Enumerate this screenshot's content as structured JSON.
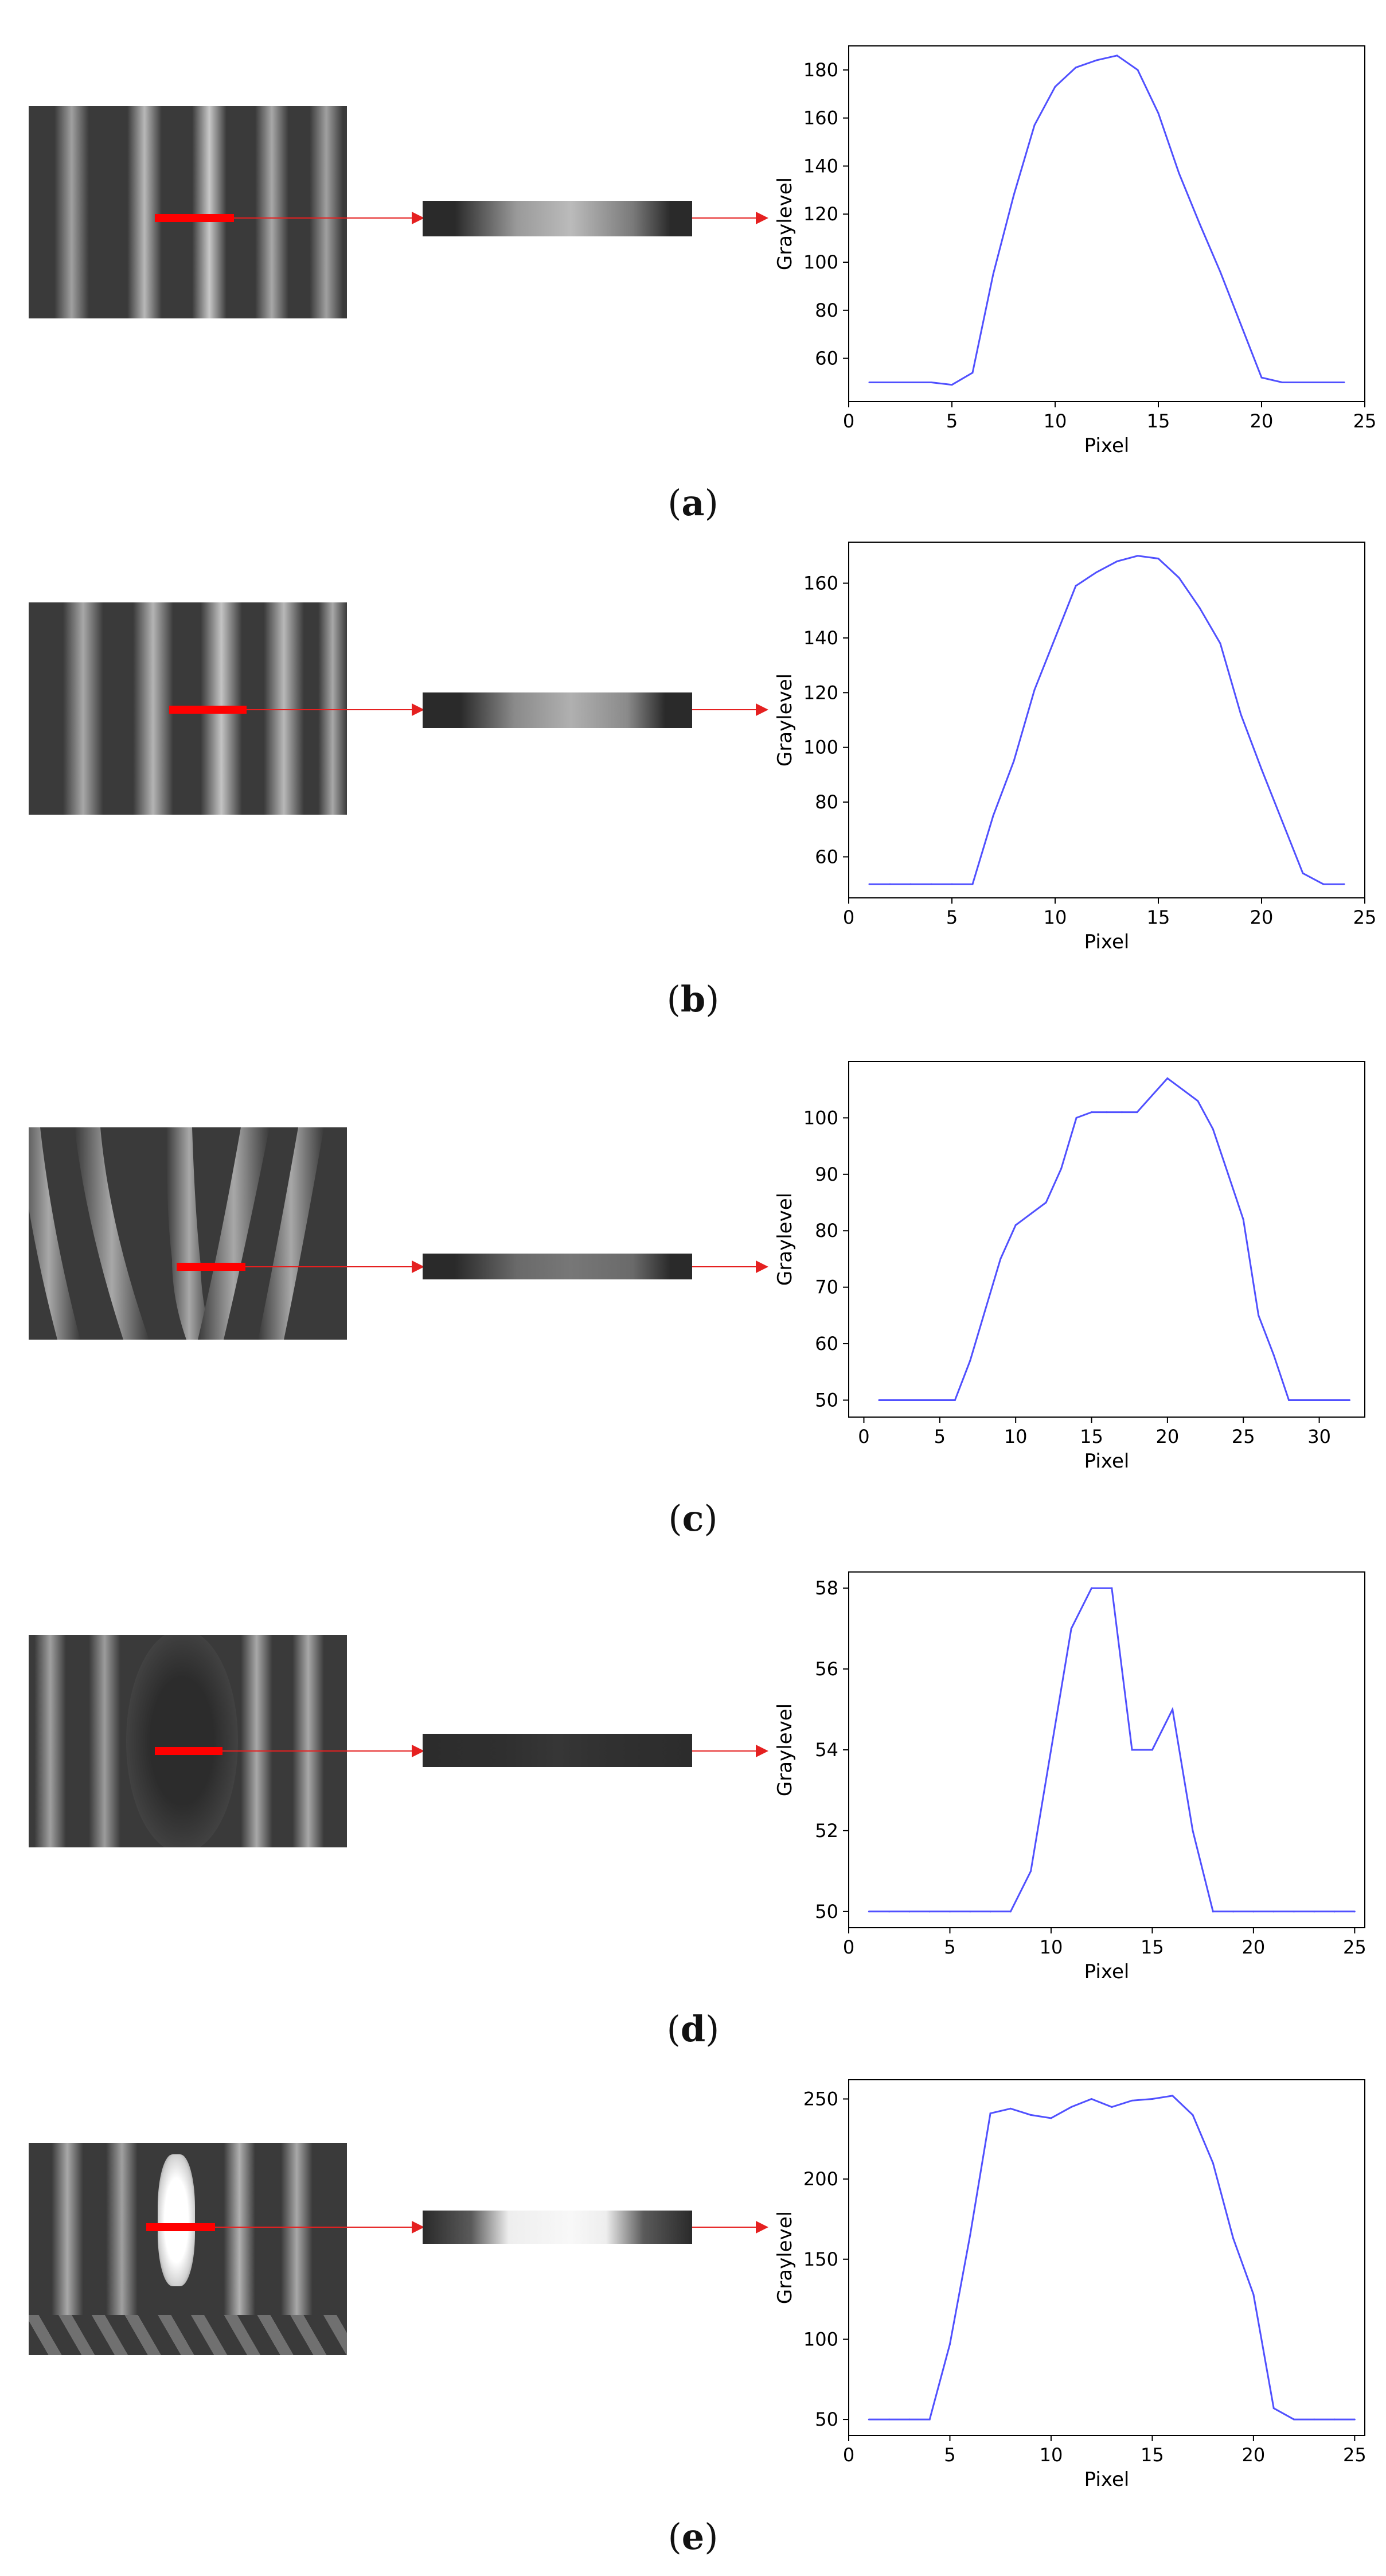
{
  "panels": [
    {
      "label": "a",
      "pattern": "straight",
      "strip_gradient": [
        "#2a2a2a",
        "#2a2a2a",
        "#9a9a9a",
        "#bbbbbb",
        "#7a7a7a",
        "#2a2a2a",
        "#2a2a2a"
      ],
      "marker_brightness": "bright"
    },
    {
      "label": "b",
      "pattern": "straight-wide",
      "strip_gradient": [
        "#2a2a2a",
        "#2a2a2a",
        "#8a8a8a",
        "#b0b0b0",
        "#8a8a8a",
        "#2a2a2a",
        "#2a2a2a"
      ],
      "marker_brightness": "bright"
    },
    {
      "label": "c",
      "pattern": "distorted",
      "strip_gradient": [
        "#2a2a2a",
        "#2a2a2a",
        "#6a6a6a",
        "#777777",
        "#6a6a6a",
        "#2a2a2a",
        "#2a2a2a"
      ],
      "marker_brightness": "dim"
    },
    {
      "label": "d",
      "pattern": "dark-defect",
      "strip_gradient": [
        "#2c2c2c",
        "#2f2f2f",
        "#343434",
        "#363636",
        "#303030",
        "#2c2c2c",
        "#2c2c2c"
      ],
      "marker_brightness": "dark"
    },
    {
      "label": "e",
      "pattern": "bright-defect",
      "strip_gradient": [
        "#2a2a2a",
        "#5a5a5a",
        "#eeeeee",
        "#f8f8f8",
        "#eeeeee",
        "#5a5a5a",
        "#2a2a2a"
      ],
      "marker_brightness": "saturated"
    }
  ],
  "chart_data": [
    {
      "type": "line",
      "xlabel": "Pixel",
      "ylabel": "Graylevel",
      "xlim": [
        0,
        25
      ],
      "ylim": [
        42,
        190
      ],
      "xticks": [
        0,
        5,
        10,
        15,
        20,
        25
      ],
      "yticks": [
        60,
        80,
        100,
        120,
        140,
        160,
        180
      ],
      "color": "#5050ff",
      "x": [
        1,
        2,
        3,
        4,
        5,
        6,
        7,
        8,
        9,
        10,
        11,
        12,
        13,
        14,
        15,
        16,
        17,
        18,
        19,
        20,
        21,
        22,
        23,
        24
      ],
      "y": [
        50,
        50,
        50,
        50,
        49,
        54,
        95,
        128,
        157,
        173,
        181,
        184,
        186,
        180,
        162,
        137,
        116,
        96,
        74,
        52,
        50,
        50,
        50,
        50
      ]
    },
    {
      "type": "line",
      "xlabel": "Pixel",
      "ylabel": "Graylevel",
      "xlim": [
        0,
        25
      ],
      "ylim": [
        45,
        175
      ],
      "xticks": [
        0,
        5,
        10,
        15,
        20,
        25
      ],
      "yticks": [
        60,
        80,
        100,
        120,
        140,
        160
      ],
      "color": "#5050ff",
      "x": [
        1,
        2,
        3,
        4,
        5,
        6,
        7,
        8,
        9,
        10,
        11,
        12,
        13,
        14,
        15,
        16,
        17,
        18,
        19,
        20,
        21,
        22,
        23,
        24
      ],
      "y": [
        50,
        50,
        50,
        50,
        50,
        50,
        75,
        95,
        121,
        140,
        159,
        164,
        168,
        170,
        169,
        162,
        151,
        138,
        112,
        92,
        73,
        54,
        50,
        50
      ]
    },
    {
      "type": "line",
      "xlabel": "Pixel",
      "ylabel": "Graylevel",
      "xlim": [
        -1,
        33
      ],
      "ylim": [
        47,
        110
      ],
      "xticks": [
        0,
        5,
        10,
        15,
        20,
        25,
        30
      ],
      "yticks": [
        50,
        60,
        70,
        80,
        90,
        100
      ],
      "color": "#5050ff",
      "x": [
        1,
        2,
        3,
        4,
        5,
        6,
        7,
        8,
        9,
        10,
        11,
        12,
        13,
        14,
        15,
        16,
        17,
        18,
        19,
        20,
        21,
        22,
        23,
        24,
        25,
        26,
        27,
        28,
        29,
        30,
        31,
        32
      ],
      "y": [
        50,
        50,
        50,
        50,
        50,
        50,
        57,
        66,
        75,
        81,
        83,
        85,
        91,
        100,
        101,
        101,
        101,
        101,
        104,
        107,
        105,
        103,
        98,
        90,
        82,
        65,
        58,
        50,
        50,
        50,
        50,
        50
      ]
    },
    {
      "type": "line",
      "xlabel": "Pixel",
      "ylabel": "Graylevel",
      "xlim": [
        0,
        25.5
      ],
      "ylim": [
        49.6,
        58.4
      ],
      "xticks": [
        0,
        5,
        10,
        15,
        20,
        25
      ],
      "yticks": [
        50,
        52,
        54,
        56,
        58
      ],
      "color": "#5050ff",
      "x": [
        1,
        2,
        3,
        4,
        5,
        6,
        7,
        8,
        9,
        10,
        11,
        12,
        13,
        14,
        15,
        16,
        17,
        18,
        19,
        20,
        21,
        22,
        23,
        24,
        25
      ],
      "y": [
        50,
        50,
        50,
        50,
        50,
        50,
        50,
        50,
        51,
        54,
        57,
        58,
        58,
        54,
        54,
        55,
        52,
        50,
        50,
        50,
        50,
        50,
        50,
        50,
        50
      ]
    },
    {
      "type": "line",
      "xlabel": "Pixel",
      "ylabel": "Graylevel",
      "xlim": [
        0,
        25.5
      ],
      "ylim": [
        40,
        262
      ],
      "xticks": [
        0,
        5,
        10,
        15,
        20,
        25
      ],
      "yticks": [
        50,
        100,
        150,
        200,
        250
      ],
      "color": "#5050ff",
      "x": [
        1,
        2,
        3,
        4,
        5,
        6,
        7,
        8,
        9,
        10,
        11,
        12,
        13,
        14,
        15,
        16,
        17,
        18,
        19,
        20,
        21,
        22,
        23,
        24,
        25
      ],
      "y": [
        50,
        50,
        50,
        50,
        97,
        165,
        241,
        244,
        240,
        238,
        245,
        250,
        245,
        249,
        250,
        252,
        240,
        210,
        163,
        128,
        57,
        50,
        50,
        50,
        50
      ]
    }
  ]
}
